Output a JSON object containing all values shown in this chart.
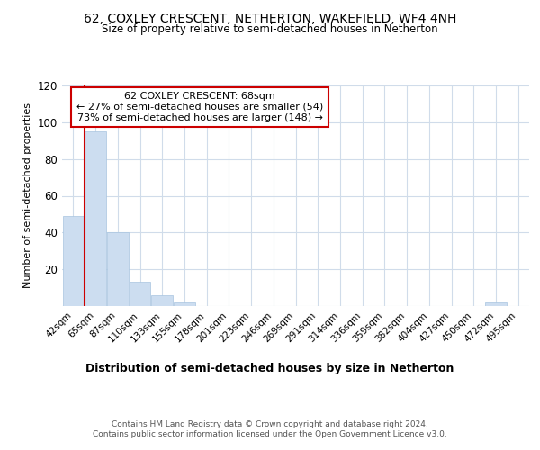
{
  "title": "62, COXLEY CRESCENT, NETHERTON, WAKEFIELD, WF4 4NH",
  "subtitle": "Size of property relative to semi-detached houses in Netherton",
  "xlabel": "Distribution of semi-detached houses by size in Netherton",
  "ylabel": "Number of semi-detached properties",
  "bar_labels": [
    "42sqm",
    "65sqm",
    "87sqm",
    "110sqm",
    "133sqm",
    "155sqm",
    "178sqm",
    "201sqm",
    "223sqm",
    "246sqm",
    "269sqm",
    "291sqm",
    "314sqm",
    "336sqm",
    "359sqm",
    "382sqm",
    "404sqm",
    "427sqm",
    "450sqm",
    "472sqm",
    "495sqm"
  ],
  "bar_values": [
    49,
    95,
    40,
    13,
    6,
    2,
    0,
    0,
    0,
    0,
    0,
    0,
    0,
    0,
    0,
    0,
    0,
    0,
    0,
    2,
    0
  ],
  "bar_color": "#ccddf0",
  "bar_edge_color": "#a8c4e0",
  "subject_line_color": "#cc0000",
  "annotation_box_color": "#cc0000",
  "ylim": [
    0,
    120
  ],
  "yticks": [
    0,
    20,
    40,
    60,
    80,
    100,
    120
  ],
  "background_color": "#ffffff",
  "grid_color": "#d0dcea",
  "footer": "Contains HM Land Registry data © Crown copyright and database right 2024.\nContains public sector information licensed under the Open Government Licence v3.0.",
  "annotation_line1": "62 COXLEY CRESCENT: 68sqm",
  "annotation_line2": "← 27% of semi-detached houses are smaller (54)",
  "annotation_line3": "73% of semi-detached houses are larger (148) →"
}
